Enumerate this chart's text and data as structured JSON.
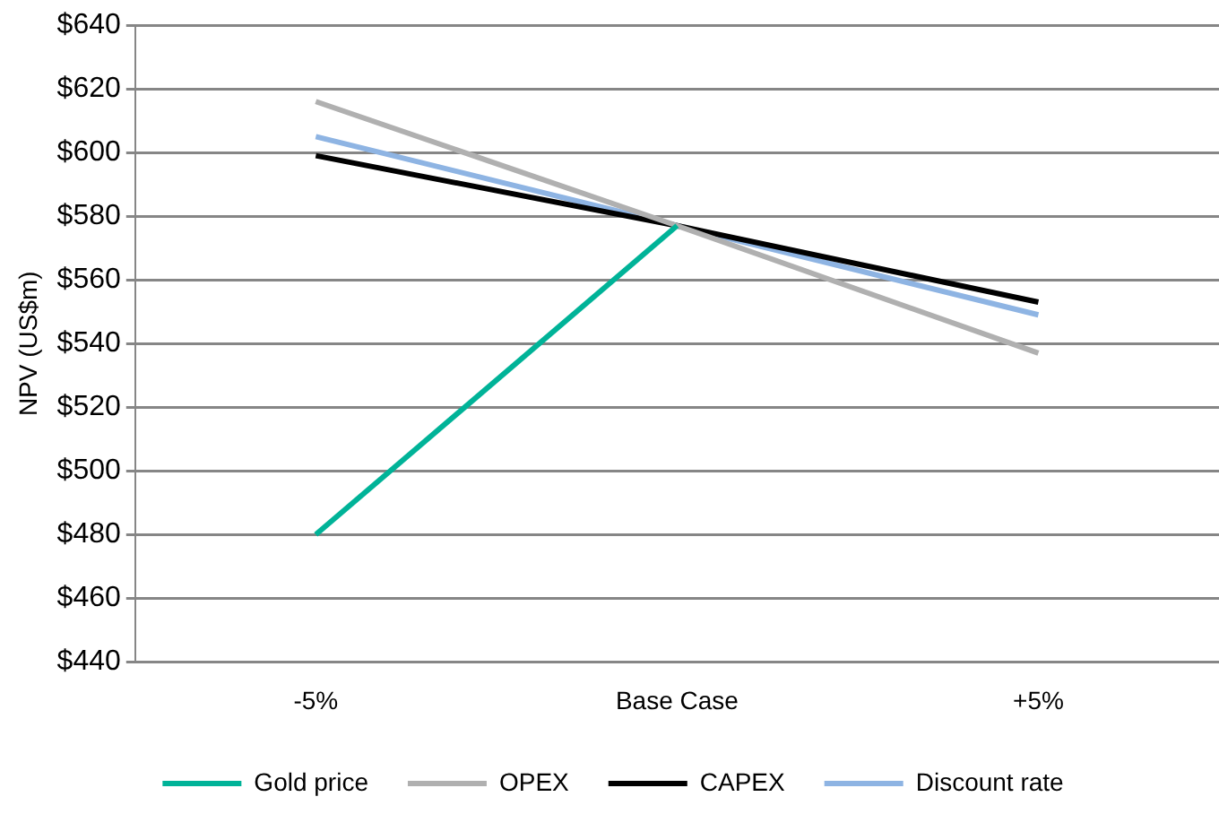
{
  "chart_data": {
    "type": "line",
    "ylabel": "NPV (US$m)",
    "categories": [
      "-5%",
      "Base Case",
      "+5%"
    ],
    "series": [
      {
        "name": "Gold price",
        "color": "#00b398",
        "values": [
          480,
          577,
          null
        ]
      },
      {
        "name": "OPEX",
        "color": "#b0b0b0",
        "values": [
          616,
          577,
          537
        ]
      },
      {
        "name": "CAPEX",
        "color": "#000000",
        "values": [
          599,
          577,
          553
        ]
      },
      {
        "name": "Discount rate",
        "color": "#8eb4e3",
        "values": [
          605,
          577,
          549
        ]
      }
    ],
    "ylim": [
      440,
      640
    ],
    "yticks": [
      {
        "value": 440,
        "label": "$440"
      },
      {
        "value": 460,
        "label": "$460"
      },
      {
        "value": 480,
        "label": "$480"
      },
      {
        "value": 500,
        "label": "$500"
      },
      {
        "value": 520,
        "label": "$520"
      },
      {
        "value": 540,
        "label": "$540"
      },
      {
        "value": 560,
        "label": "$560"
      },
      {
        "value": 580,
        "label": "$580"
      },
      {
        "value": 600,
        "label": "$600"
      },
      {
        "value": 620,
        "label": "$620"
      },
      {
        "value": 640,
        "label": "$640"
      }
    ],
    "grid": "y",
    "legend": "bottom",
    "marker": "none",
    "line_style": "solid"
  }
}
